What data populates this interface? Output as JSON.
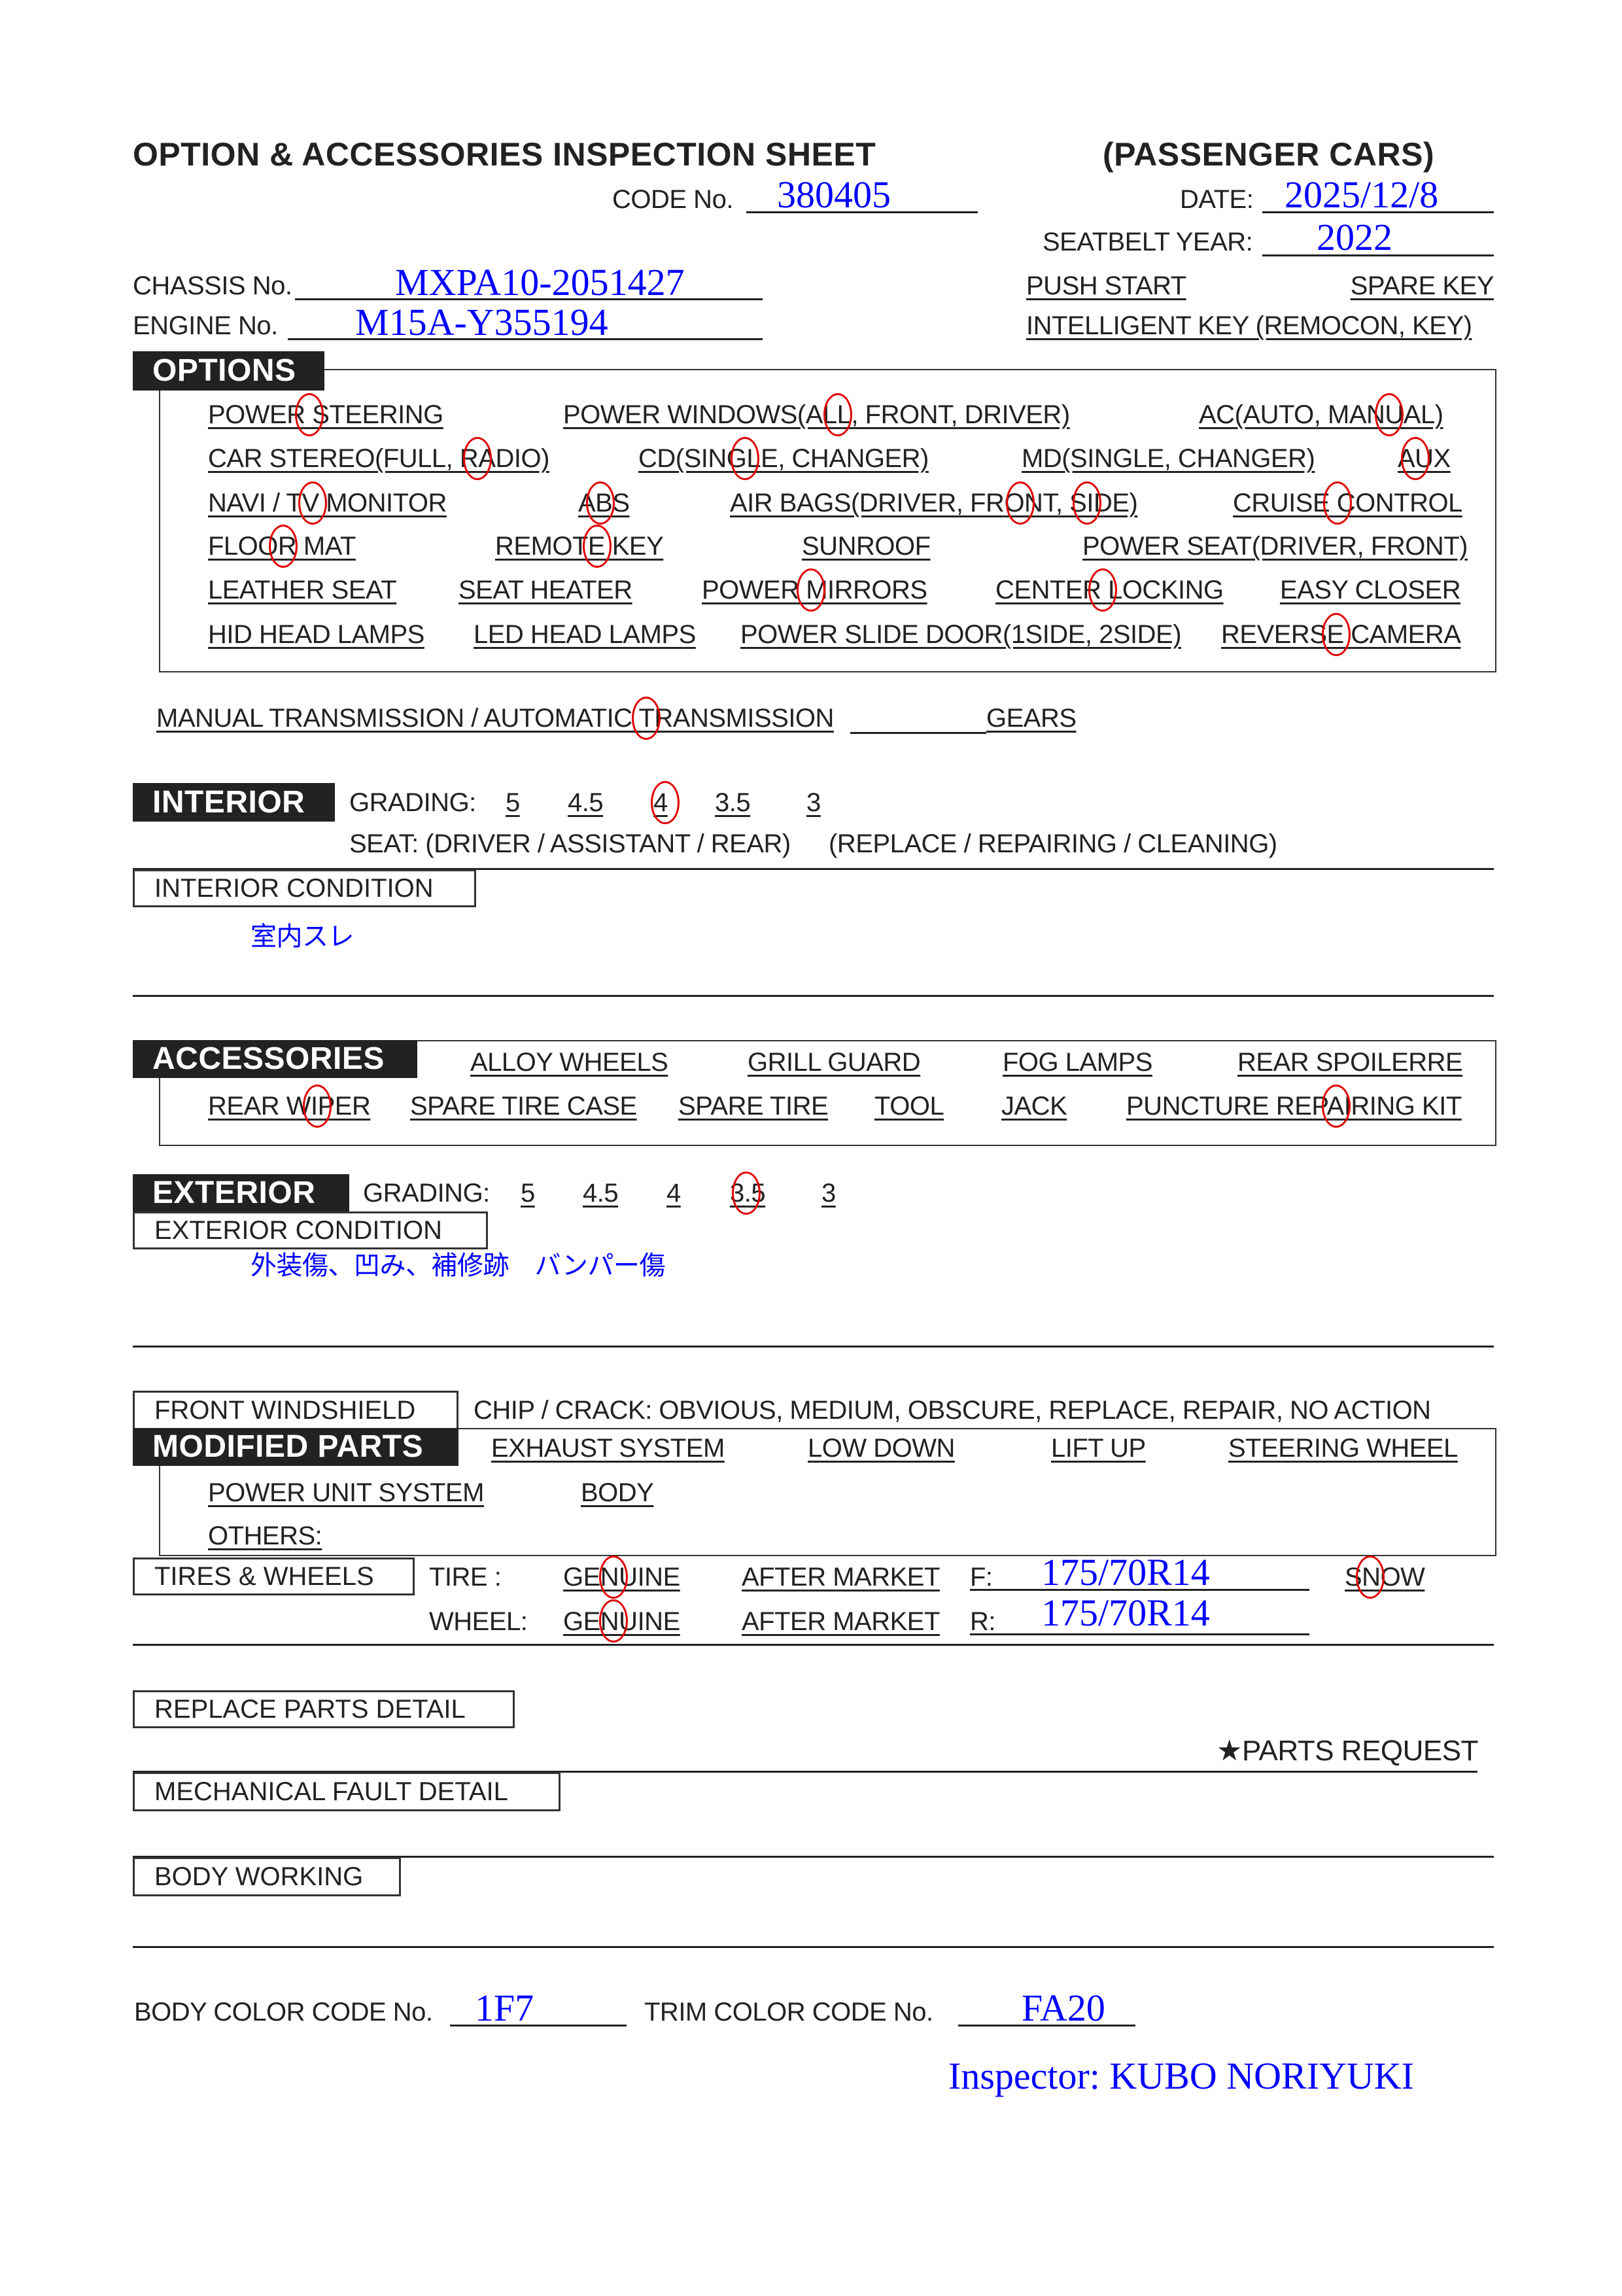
{
  "header": {
    "title": "OPTION & ACCESSORIES INSPECTION SHEET",
    "category": "(PASSENGER CARS)",
    "code_label": "CODE No.",
    "code_value": "380405",
    "date_label": "DATE:",
    "date_value": "2025/12/8",
    "seatbelt_label": "SEATBELT YEAR:",
    "seatbelt_value": "2022",
    "chassis_label": "CHASSIS No.",
    "chassis_value": "MXPA10-2051427",
    "engine_label": "ENGINE No.",
    "engine_value": "M15A-Y355194",
    "push_start": "PUSH START",
    "spare_key": "SPARE KEY",
    "intelligent_key": "INTELLIGENT KEY (REMOCON, KEY)"
  },
  "options": {
    "label": "OPTIONS",
    "items": [
      {
        "label": "POWER STEERING",
        "marked": true
      },
      {
        "label": "POWER WINDOWS(ALL, FRONT, DRIVER)",
        "marked": "ALL"
      },
      {
        "label": "AC(AUTO, MANUAL)",
        "marked": "MANUAL"
      },
      {
        "label": "CAR STEREO(FULL, RADIO)",
        "marked": "RADIO"
      },
      {
        "label": "CD(SINGLE, CHANGER)",
        "marked": "SINGLE"
      },
      {
        "label": "MD(SINGLE, CHANGER)",
        "marked": false
      },
      {
        "label": "AUX",
        "marked": true
      },
      {
        "label": "NAVI / TV MONITOR",
        "marked": "TV"
      },
      {
        "label": "ABS",
        "marked": true
      },
      {
        "label": "AIR BAGS(DRIVER, FRONT, SIDE)",
        "marked": "FRONT, SIDE"
      },
      {
        "label": "CRUISE CONTROL",
        "marked": true
      },
      {
        "label": "FLOOR MAT",
        "marked": true
      },
      {
        "label": "REMOTE KEY",
        "marked": true
      },
      {
        "label": "SUNROOF",
        "marked": false
      },
      {
        "label": "POWER SEAT(DRIVER, FRONT)",
        "marked": false
      },
      {
        "label": "LEATHER SEAT",
        "marked": false
      },
      {
        "label": "SEAT HEATER",
        "marked": false
      },
      {
        "label": "POWER MIRRORS",
        "marked": true
      },
      {
        "label": "CENTER LOCKING",
        "marked": true
      },
      {
        "label": "EASY CLOSER",
        "marked": false
      },
      {
        "label": "HID HEAD LAMPS",
        "marked": false
      },
      {
        "label": "LED HEAD LAMPS",
        "marked": false
      },
      {
        "label": "POWER SLIDE DOOR(1SIDE,  2SIDE)",
        "marked": false
      },
      {
        "label": "REVERSE CAMERA",
        "marked": true
      }
    ],
    "transmission": "MANUAL TRANSMISSION / AUTOMATIC TRANSMISSION",
    "transmission_marked": "AUTOMATIC TRANSMISSION",
    "gears": "GEARS"
  },
  "interior": {
    "label": "INTERIOR",
    "grading_label": "GRADING:",
    "grades": [
      "5",
      "4.5",
      "4",
      "3.5",
      "3"
    ],
    "selected_grade": "4",
    "seat_line": "SEAT:  (DRIVER / ASSISTANT / REAR)",
    "seat_action": "(REPLACE / REPAIRING / CLEANING)",
    "condition_label": "INTERIOR CONDITION",
    "condition_note": "室内スレ"
  },
  "accessories": {
    "label": "ACCESSORIES",
    "items": [
      {
        "label": "ALLOY WHEELS",
        "marked": false
      },
      {
        "label": "GRILL GUARD",
        "marked": false
      },
      {
        "label": "FOG LAMPS",
        "marked": false
      },
      {
        "label": "REAR SPOILERRE",
        "marked": false
      },
      {
        "label": "REAR WIPER",
        "marked": true
      },
      {
        "label": "SPARE TIRE CASE",
        "marked": false
      },
      {
        "label": "SPARE TIRE",
        "marked": false
      },
      {
        "label": "TOOL",
        "marked": false
      },
      {
        "label": "JACK",
        "marked": false
      },
      {
        "label": "PUNCTURE REPAIRING KIT",
        "marked": true
      }
    ]
  },
  "exterior": {
    "label": "EXTERIOR",
    "grading_label": "GRADING:",
    "grades": [
      "5",
      "4.5",
      "4",
      "3.5",
      "3"
    ],
    "selected_grade": "3.5",
    "condition_label": "EXTERIOR CONDITION",
    "condition_note": "外装傷、凹み、補修跡　バンパー傷"
  },
  "windshield": {
    "label": "FRONT WINDSHIELD",
    "options": "CHIP / CRACK:  OBVIOUS,  MEDIUM,  OBSCURE,  REPLACE,  REPAIR,  NO ACTION"
  },
  "modified_parts": {
    "label": "MODIFIED PARTS",
    "items": [
      "EXHAUST SYSTEM",
      "LOW DOWN",
      "LIFT UP",
      "STEERING WHEEL",
      "POWER UNIT SYSTEM",
      "BODY",
      "OTHERS:"
    ]
  },
  "tires_wheels": {
    "label": "TIRES & WHEELS",
    "tire_label": "TIRE :",
    "wheel_label": "WHEEL:",
    "genuine": "GENUINE",
    "after_market": "AFTER MARKET",
    "front_label": "F:",
    "front_value": "175/70R14",
    "rear_label": "R:",
    "rear_value": "175/70R14",
    "snow": "SNOW",
    "tire_selected": "GENUINE",
    "wheel_selected": "GENUINE",
    "snow_marked": true
  },
  "details": {
    "replace_parts": "REPLACE PARTS DETAIL",
    "parts_request": "★PARTS REQUEST",
    "mechanical_fault": "MECHANICAL FAULT DETAIL",
    "body_working": "BODY WORKING"
  },
  "footer": {
    "body_color_label": "BODY COLOR CODE No.",
    "body_color_value": "1F7",
    "trim_color_label": "TRIM COLOR CODE No.",
    "trim_color_value": "FA20",
    "inspector": "Inspector: KUBO NORIYUKI"
  },
  "colors": {
    "ink": "#222222",
    "handwritten": "#0000ff",
    "mark": "#e00000"
  }
}
